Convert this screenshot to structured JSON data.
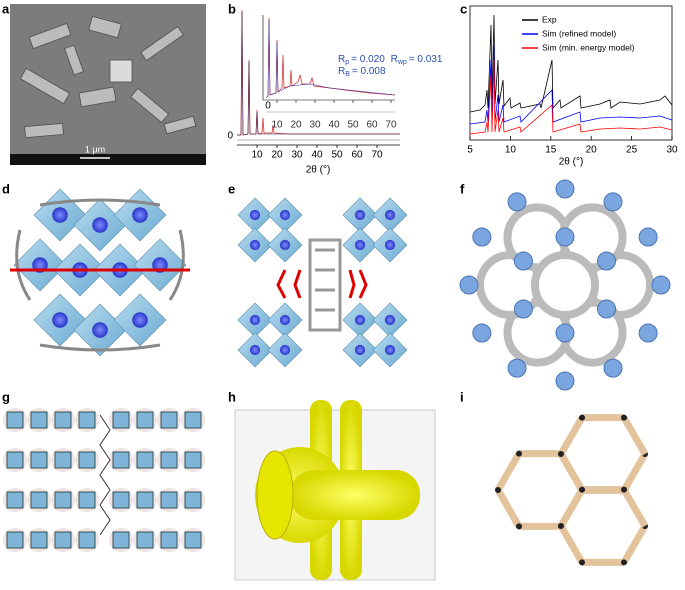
{
  "panels": [
    "a",
    "b",
    "c",
    "d",
    "e",
    "f",
    "g",
    "h",
    "i"
  ],
  "panel_a": {
    "scale_bar": "1 μm"
  },
  "panel_b": {
    "fit_stats": [
      {
        "symbol": "R",
        "subscript": "p",
        "value": "= 0.020"
      },
      {
        "symbol": "R",
        "subscript": "wp",
        "value": "= 0.031"
      },
      {
        "symbol": "R",
        "subscript": "B",
        "value": "= 0.008"
      }
    ],
    "xlabel": "2θ (°)",
    "xticks": [
      10,
      20,
      30,
      40,
      50,
      60,
      70
    ],
    "yticks": [
      0
    ],
    "inset_xticks": [
      10,
      20,
      30,
      40,
      50,
      60,
      70
    ],
    "inset_yticks": [
      0
    ]
  },
  "panel_c": {
    "legend": [
      {
        "name": "Exp",
        "color": "#000000"
      },
      {
        "name": "Sim (refined model)",
        "color": "#0000ff"
      },
      {
        "name": "Sim (min. energy model)",
        "color": "#ff0000"
      }
    ],
    "xlabel": "2θ (°)",
    "xticks": [
      5,
      10,
      15,
      20,
      25,
      30
    ]
  }
}
